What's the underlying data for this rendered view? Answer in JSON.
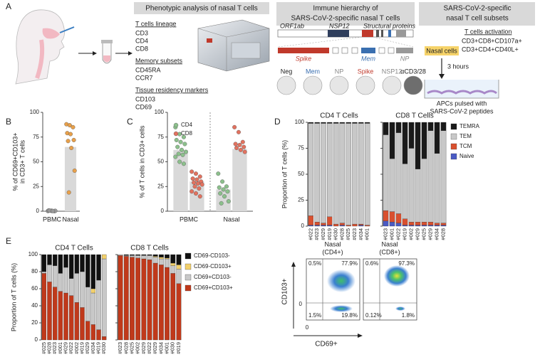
{
  "panel_a": {
    "label": "A",
    "phenotypic": {
      "title": "Phenotypic analysis of nasal T cells",
      "groups": [
        {
          "heading": "T cells lineage",
          "markers": [
            "CD3",
            "CD4",
            "CD8"
          ]
        },
        {
          "heading": "Memory subsets",
          "markers": [
            "CD45RA",
            "CCR7"
          ]
        },
        {
          "heading": "Tissue residency markers",
          "markers": [
            "CD103",
            "CD69"
          ]
        }
      ]
    },
    "hierarchy": {
      "title": [
        "Immune hierarchy of",
        "SARS-CoV-2-specific nasal T cells"
      ],
      "genome": [
        "ORF1ab",
        "NSP12",
        "Structural proteins"
      ],
      "proteins": [
        "Spike",
        "Mem",
        "NP"
      ],
      "wells": [
        "Neg",
        "Mem",
        "NP",
        "Spike",
        "NSP12",
        "αCD3/28"
      ]
    },
    "subsets": {
      "title": [
        "SARS-CoV-2-specific",
        "nasal T cell subsets"
      ],
      "activation_heading": "T cells activation",
      "input": "Nasal cells",
      "markers": [
        "CD3+CD8+CD107a+",
        "CD3+CD4+CD40L+"
      ],
      "duration": "3 hours",
      "apc": [
        "APCs pulsed with",
        "SARS-CoV-2 peptides"
      ]
    }
  },
  "chart_data": [
    {
      "type": "strip",
      "panel_label": "B",
      "ylabel": [
        "% of CD69+CD103+",
        "in CD3+ T cells"
      ],
      "categories": [
        "PBMC",
        "Nasal"
      ],
      "values": [
        0,
        65
      ],
      "bar_color": "#d9d9d9",
      "points": [
        [
          0.2,
          0.5,
          0.1,
          0.8,
          0.3,
          0.4,
          0.6,
          0.2
        ],
        [
          88,
          87,
          85,
          79,
          78,
          72,
          71,
          64,
          41,
          19
        ]
      ],
      "point_colors": [
        "#9a9a9a",
        "#e8a04a"
      ],
      "ylim": [
        0,
        100
      ],
      "yticks": [
        0,
        25,
        50,
        75,
        100
      ]
    },
    {
      "type": "strip",
      "panel_label": "C",
      "ylabel": "% of T cells in CD3+ cells",
      "categories": [
        "PBMC",
        "Nasal"
      ],
      "bar_color": "#d9d9d9",
      "series": [
        {
          "name": "CD4",
          "color": "#8cc08c",
          "values": [
            62,
            22
          ],
          "points": [
            [
              85,
              78,
              75,
              72,
              70,
              68,
              65,
              62,
              60,
              58,
              57,
              55,
              50,
              48
            ],
            [
              38,
              30,
              25,
              24,
              22,
              20,
              18,
              15,
              10,
              8
            ]
          ]
        },
        {
          "name": "CD8",
          "color": "#e2725f",
          "values": [
            30,
            63
          ],
          "points": [
            [
              40,
              38,
              35,
              33,
              32,
              30,
              29,
              28,
              27,
              25,
              23,
              20,
              18,
              15
            ],
            [
              85,
              80,
              70,
              68,
              67,
              65,
              64,
              62,
              60
            ]
          ]
        }
      ],
      "ylim": [
        0,
        100
      ],
      "yticks": [
        0,
        25,
        50,
        75,
        100
      ]
    },
    {
      "type": "stacked_bar",
      "panel_label": "D",
      "ylabel": "Proportion of T cells (%)",
      "facets": [
        {
          "title": "CD4 T Cells",
          "categories": [
            "#022",
            "#023",
            "#029",
            "#019",
            "#030",
            "#028",
            "#025",
            "#023",
            "#034",
            "#001"
          ]
        },
        {
          "title": "CD8 T Cells",
          "categories": [
            "#023",
            "#001",
            "#022",
            "#019",
            "#002",
            "#029",
            "#025",
            "#029",
            "#034",
            "#028"
          ]
        }
      ],
      "series": [
        {
          "name": "TEMRA",
          "color": "#1a1a1a",
          "values": [
            [
              1,
              1,
              1,
              1,
              1,
              1,
              1,
              1,
              1,
              1
            ],
            [
              12,
              35,
              10,
              40,
              25,
              45,
              35,
              8,
              30,
              8
            ]
          ]
        },
        {
          "name": "TEM",
          "color": "#c8c8c8",
          "values": [
            [
              89,
              95,
              96,
              90,
              97,
              96,
              98,
              97,
              97,
              98
            ],
            [
              73,
              51,
              78,
              53,
              71,
              51,
              61,
              88,
              67,
              89
            ]
          ]
        },
        {
          "name": "TCM",
          "color": "#d9502f",
          "values": [
            [
              9,
              3,
              2,
              8,
              2,
              2,
              1,
              2,
              1,
              1
            ],
            [
              10,
              10,
              9,
              6,
              3,
              3,
              3,
              3,
              2,
              2
            ]
          ]
        },
        {
          "name": "Naive",
          "color": "#4a5bc4",
          "values": [
            [
              1,
              1,
              1,
              1,
              0,
              1,
              0,
              0,
              1,
              0
            ],
            [
              5,
              4,
              3,
              1,
              1,
              1,
              1,
              1,
              1,
              1
            ]
          ]
        }
      ],
      "ylim": [
        0,
        100
      ],
      "yticks": [
        0,
        25,
        50,
        75,
        100
      ]
    },
    {
      "type": "stacked_bar",
      "panel_label": "E",
      "ylabel": "Proportion of T cells (%)",
      "facets": [
        {
          "title": "CD4 T Cells",
          "categories": [
            "#025",
            "#028",
            "#023",
            "#001",
            "#029",
            "#022",
            "#002",
            "#019",
            "#029",
            "#034",
            "#019",
            "#030"
          ]
        },
        {
          "title": "CD8 T Cells",
          "categories": [
            "#023",
            "#028",
            "#025",
            "#002",
            "#029",
            "#022",
            "#029",
            "#034",
            "#001",
            "#030",
            "#019"
          ]
        }
      ],
      "series": [
        {
          "name": "CD69-CD103-",
          "color": "#111111",
          "values": [
            [
              20,
              12,
              13,
              22,
              15,
              28,
              22,
              20,
              38,
              40,
              30,
              0
            ],
            [
              0,
              1,
              1,
              1,
              1,
              1,
              2,
              3,
              4,
              10,
              12
            ]
          ]
        },
        {
          "name": "CD69-CD103+",
          "color": "#f2d06b",
          "values": [
            [
              0,
              0,
              0,
              0,
              0,
              0,
              0,
              0,
              0,
              5,
              0,
              5
            ],
            [
              0,
              0,
              0,
              0,
              0,
              0,
              1,
              2,
              1,
              3,
              5
            ]
          ]
        },
        {
          "name": "CD69+CD103-",
          "color": "#c8c8c8",
          "values": [
            [
              2,
              20,
              25,
              21,
              30,
              20,
              34,
              42,
              40,
              37,
              58,
              91
            ],
            [
              1,
              1,
              2,
              3,
              4,
              5,
              7,
              7,
              10,
              9,
              17
            ]
          ]
        },
        {
          "name": "CD69+CD103+",
          "color": "#c0391b",
          "values": [
            [
              78,
              68,
              62,
              57,
              55,
              52,
              44,
              38,
              22,
              18,
              12,
              4
            ],
            [
              99,
              98,
              97,
              96,
              95,
              94,
              90,
              88,
              85,
              78,
              66
            ]
          ]
        }
      ],
      "ylim": [
        0,
        100
      ],
      "yticks": [
        0,
        20,
        40,
        60,
        80,
        100
      ]
    }
  ],
  "flow": {
    "axes": {
      "y": "CD103+",
      "x": "CD69+",
      "zeros": [
        "0",
        "0"
      ]
    },
    "plots": [
      {
        "title": [
          "Nasal",
          "(CD4+)"
        ],
        "quadrants": [
          "0.5%",
          "77.9%",
          "1.5%",
          "19.8%"
        ]
      },
      {
        "title": [
          "Nasal",
          "(CD8+)"
        ],
        "quadrants": [
          "0.6%",
          "97.3%",
          "0.12%",
          "1.8%"
        ]
      }
    ]
  }
}
